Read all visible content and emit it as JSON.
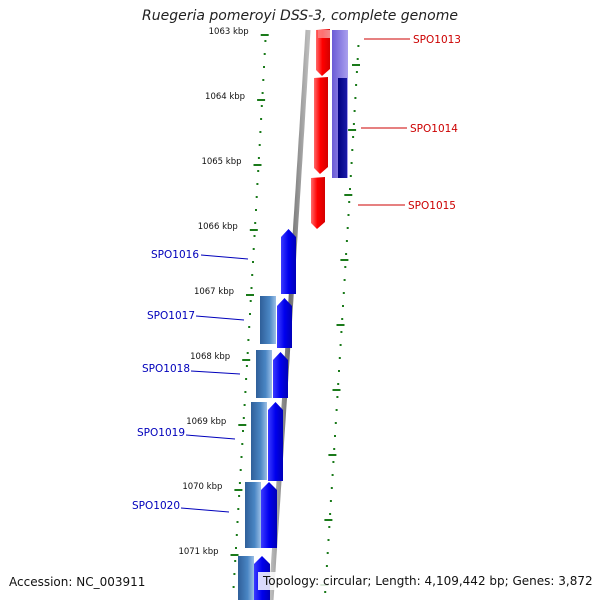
{
  "title": "Ruegeria pomeroyi DSS-3, complete genome",
  "footer": {
    "accession": "Accession: NC_003911",
    "summary": "Topology: circular; Length: 4,109,442 bp; Genes: 3,872"
  },
  "scale": {
    "ticks": [
      "1063 kbp",
      "1064 kbp",
      "1065 kbp",
      "1066 kbp",
      "1067 kbp",
      "1068 kbp",
      "1069 kbp",
      "1070 kbp",
      "1071 kbp"
    ]
  },
  "genes": [
    {
      "id": "SPO1013",
      "strand": "reverse",
      "color": "#ff0000"
    },
    {
      "id": "SPO1014",
      "strand": "reverse",
      "color": "#ff0000"
    },
    {
      "id": "SPO1015",
      "strand": "reverse",
      "color": "#ff0000"
    },
    {
      "id": "SPO1016",
      "strand": "forward",
      "color": "#0000ee"
    },
    {
      "id": "SPO1017",
      "strand": "forward",
      "color": "#0000ee"
    },
    {
      "id": "SPO1018",
      "strand": "forward",
      "color": "#0000ee"
    },
    {
      "id": "SPO1019",
      "strand": "forward",
      "color": "#0000ee"
    },
    {
      "id": "SPO1020",
      "strand": "forward",
      "color": "#0000ee"
    }
  ],
  "colors": {
    "reverse_label": "#cc0000",
    "forward_label": "#0000bb",
    "tick": "#1a7a1a",
    "backbone": "#888888"
  }
}
